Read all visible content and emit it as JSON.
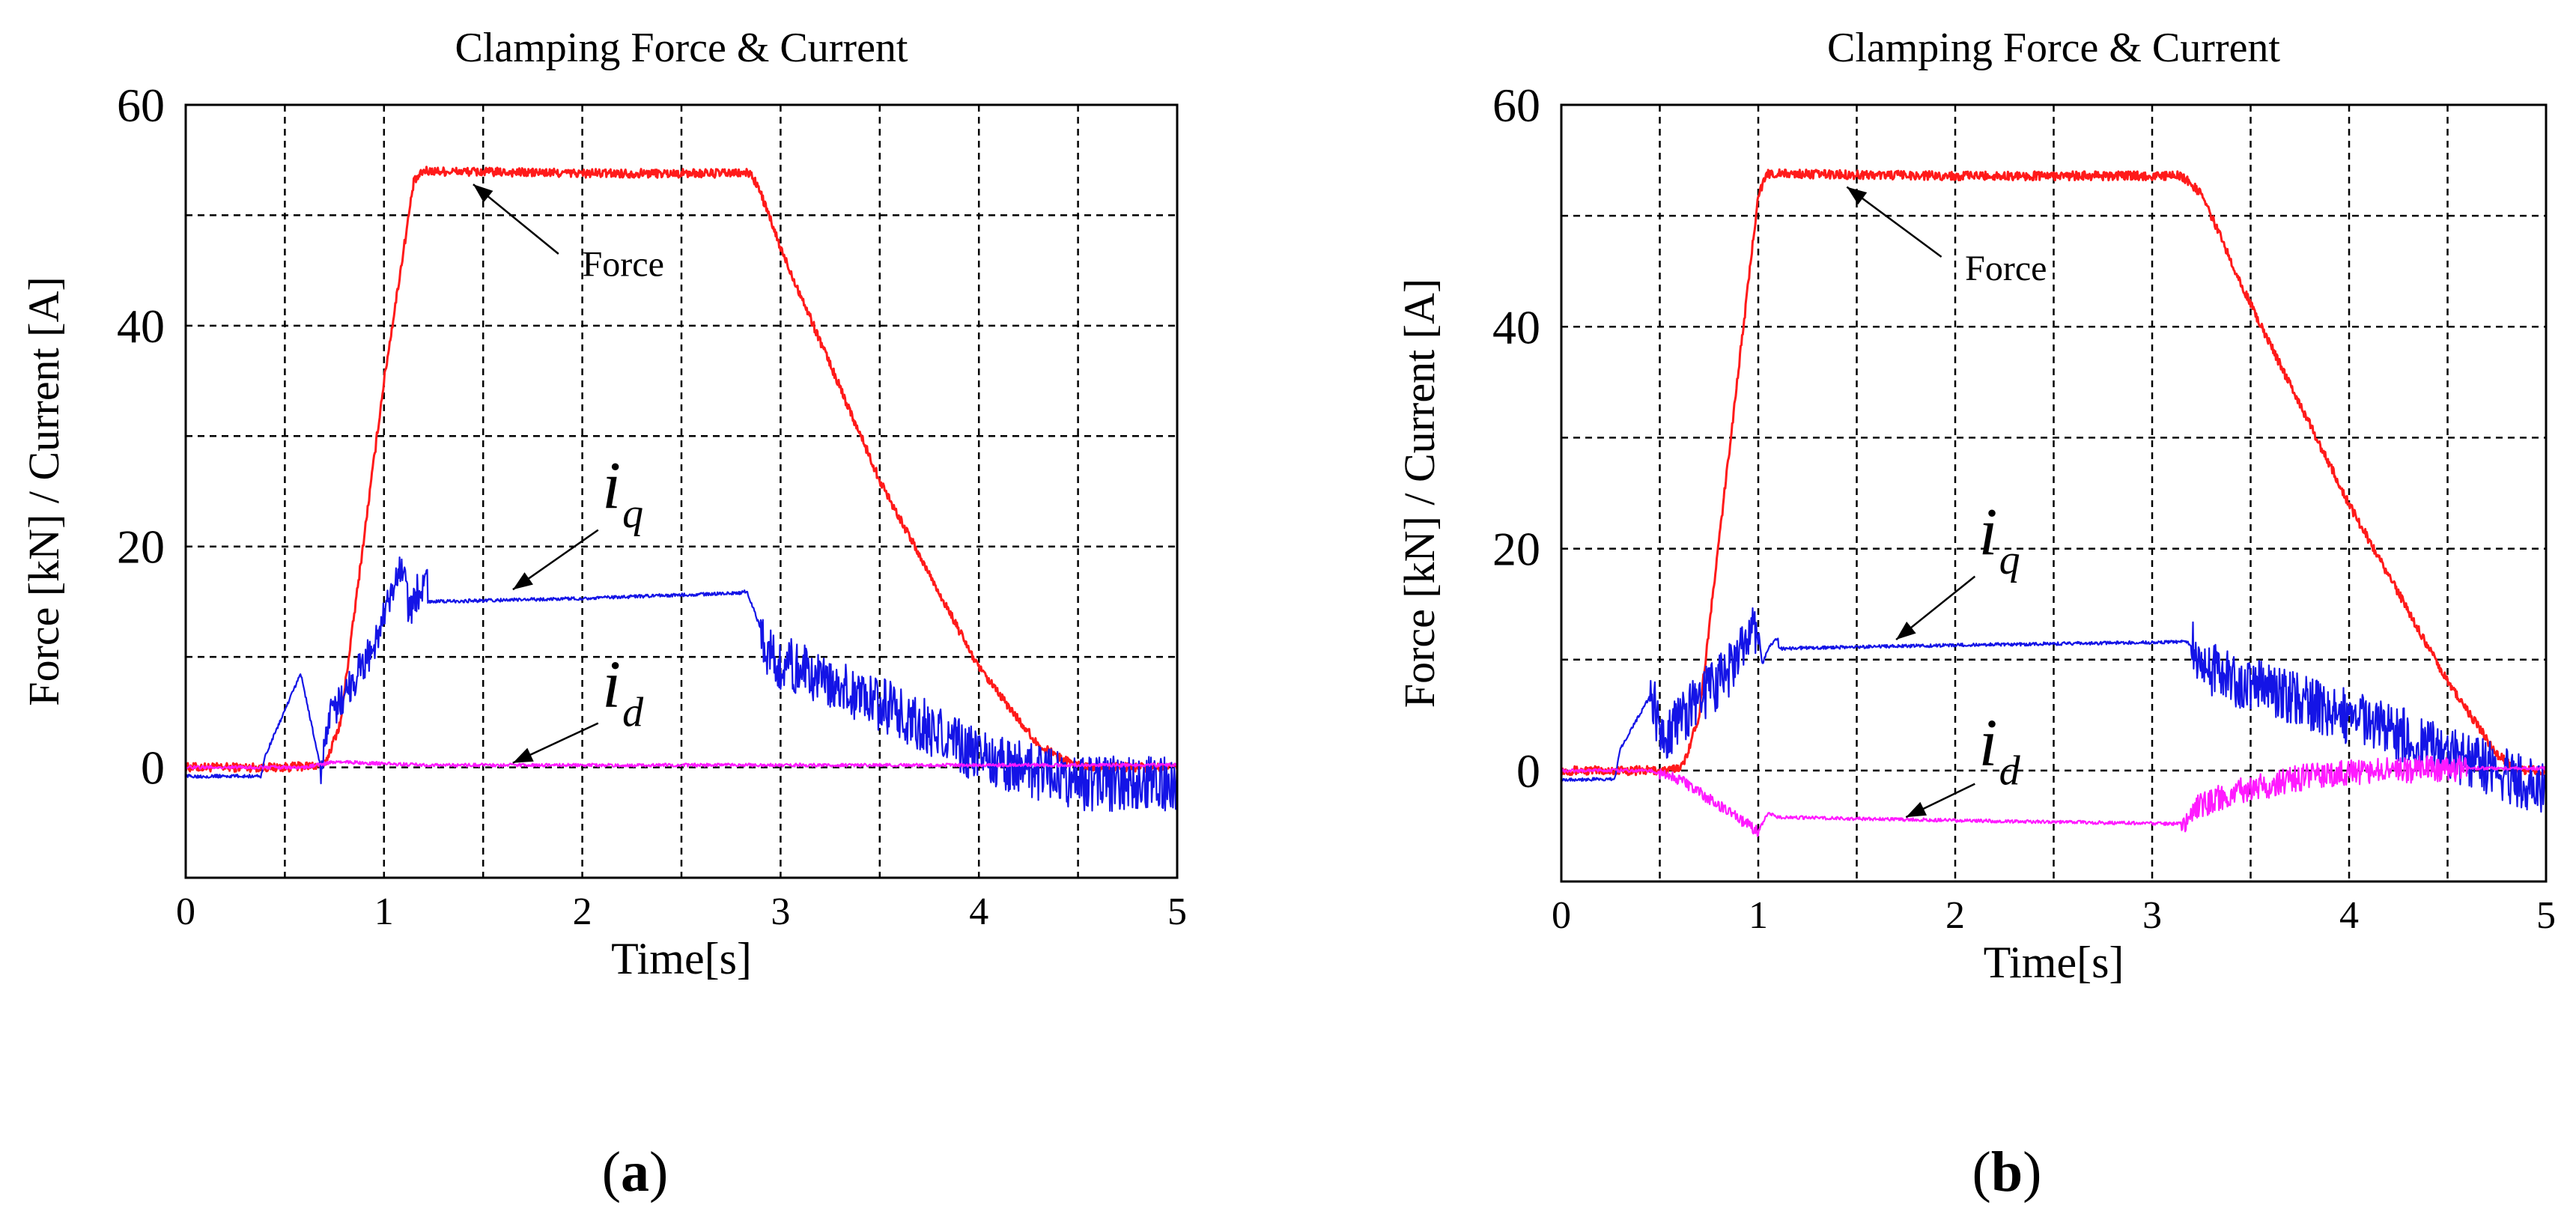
{
  "figure": {
    "panels": [
      {
        "id": "a",
        "open": "(",
        "letter": "a",
        "close": ")"
      },
      {
        "id": "b",
        "open": "(",
        "letter": "b",
        "close": ")"
      }
    ]
  },
  "colors": {
    "force": "#ff1a1a",
    "iq": "#1414e6",
    "id": "#ff1aff",
    "grid": "#000000"
  },
  "chart_data": [
    {
      "type": "line",
      "panel": "a",
      "title": "Clamping Force & Current",
      "xlabel": "Time[s]",
      "ylabel": "Force [kN] / Current [A]",
      "xlim": [
        0,
        5
      ],
      "ylim": [
        -10,
        60
      ],
      "xticks": [
        0,
        0.5,
        1,
        1.5,
        2,
        2.5,
        3,
        3.5,
        4,
        4.5,
        5
      ],
      "xticklabels": [
        "0",
        "",
        "1",
        "",
        "2",
        "",
        "3",
        "",
        "4",
        "",
        "5"
      ],
      "yticks": [
        -10,
        0,
        10,
        20,
        30,
        40,
        50,
        60
      ],
      "yticklabels": [
        "",
        "0",
        "",
        "20",
        "",
        "40",
        "",
        "60"
      ],
      "grid": true,
      "series": [
        {
          "name": "Force",
          "color_key": "force",
          "width": 3,
          "x": [
            0,
            0.5,
            0.7,
            0.78,
            1.0,
            1.15,
            1.2,
            2.0,
            2.85,
            2.9,
            3.0,
            3.5,
            4.0,
            4.3,
            4.45,
            4.6,
            5
          ],
          "y": [
            0,
            0,
            0.2,
            4,
            35,
            53,
            54,
            53.8,
            53.8,
            52,
            47,
            26,
            9,
            2,
            0.5,
            0,
            0
          ],
          "noise": 0.4
        },
        {
          "name": "iq",
          "color_key": "iq",
          "width": 2.2,
          "x": [
            0,
            0.38,
            0.4,
            0.58,
            0.68,
            0.72,
            0.78,
            0.95,
            1.1,
            1.13,
            1.15,
            1.22,
            1.22,
            2.0,
            2.8,
            2.83,
            2.95,
            3.2,
            3.6,
            4.0,
            4.5,
            5
          ],
          "y": [
            -0.8,
            -0.8,
            1,
            8.5,
            0,
            4,
            6,
            11,
            18.5,
            13.5,
            15,
            18,
            15,
            15.3,
            15.8,
            16,
            10,
            8,
            5,
            1,
            -1.5,
            -1.5
          ],
          "noise": [
            [
              0.68,
              1.2,
              1.8
            ],
            [
              2.9,
              5.0,
              2.5
            ]
          ]
        },
        {
          "name": "id",
          "color_key": "id",
          "width": 2.2,
          "x": [
            0,
            0.6,
            0.75,
            1.2,
            5
          ],
          "y": [
            0,
            0,
            0.5,
            0.2,
            0.2
          ],
          "noise": 0.15
        }
      ],
      "annotations": [
        {
          "kind": "label",
          "text": "Force",
          "x": 2.0,
          "y": 44.5,
          "size": 48,
          "from": [
            1.88,
            46.5
          ],
          "to": [
            1.45,
            52.8
          ]
        },
        {
          "kind": "math",
          "base": "i",
          "sub": "q",
          "x": 2.1,
          "y": 23.5,
          "from": [
            2.08,
            21.5
          ],
          "to": [
            1.65,
            16.1
          ]
        },
        {
          "kind": "math",
          "base": "i",
          "sub": "d",
          "x": 2.1,
          "y": 5.5,
          "from": [
            2.08,
            4.0
          ],
          "to": [
            1.65,
            0.4
          ]
        }
      ]
    },
    {
      "type": "line",
      "panel": "b",
      "title": "Clamping Force & Current",
      "xlabel": "Time[s]",
      "ylabel": "Force [kN] / Current [A]",
      "xlim": [
        0,
        5
      ],
      "ylim": [
        -10,
        60
      ],
      "xticks": [
        0,
        0.5,
        1,
        1.5,
        2,
        2.5,
        3,
        3.5,
        4,
        4.5,
        5
      ],
      "xticklabels": [
        "0",
        "",
        "1",
        "",
        "2",
        "",
        "3",
        "",
        "4",
        "",
        "5"
      ],
      "yticks": [
        -10,
        0,
        10,
        20,
        30,
        40,
        50,
        60
      ],
      "yticklabels": [
        "",
        "0",
        "",
        "20",
        "",
        "40",
        "",
        "60"
      ],
      "grid": true,
      "series": [
        {
          "name": "Force",
          "color_key": "force",
          "width": 3,
          "x": [
            0,
            0.55,
            0.62,
            0.7,
            0.95,
            1.0,
            1.05,
            2.0,
            3.15,
            3.25,
            3.5,
            4.0,
            4.5,
            4.75,
            4.85,
            5
          ],
          "y": [
            0,
            0,
            0.5,
            5,
            44,
            52,
            53.8,
            53.6,
            53.6,
            52,
            42,
            24,
            8,
            1.5,
            0,
            0
          ],
          "noise": 0.4
        },
        {
          "name": "iq",
          "color_key": "iq",
          "width": 2.2,
          "x": [
            0,
            0.27,
            0.3,
            0.46,
            0.5,
            0.62,
            0.85,
            1.0,
            1.02,
            1.05,
            1.1,
            1.1,
            2.0,
            3.15,
            3.18,
            3.3,
            3.8,
            4.3,
            4.8,
            5
          ],
          "y": [
            -0.8,
            -0.8,
            2,
            7,
            3,
            5,
            9,
            13,
            9.5,
            11,
            12,
            11,
            11.3,
            11.6,
            11.6,
            9,
            6,
            3,
            -0.5,
            -1.5
          ],
          "noise": [
            [
              0.45,
              1.0,
              2.5
            ],
            [
              3.2,
              5.0,
              2.5
            ]
          ]
        },
        {
          "name": "id",
          "color_key": "id",
          "width": 2.2,
          "x": [
            0,
            0.45,
            0.6,
            1.0,
            1.02,
            1.05,
            1.1,
            2.0,
            3.15,
            3.2,
            3.4,
            3.8,
            4.2,
            4.5,
            5
          ],
          "y": [
            0,
            0,
            -0.8,
            -5.5,
            -4.8,
            -3.8,
            -4.2,
            -4.5,
            -4.8,
            -3.5,
            -2,
            -0.5,
            0,
            0.2,
            0.2
          ],
          "noise": [
            [
              0.5,
              1.0,
              0.5
            ],
            [
              3.15,
              4.6,
              1.2
            ]
          ]
        }
      ],
      "annotations": [
        {
          "kind": "label",
          "text": "Force",
          "x": 2.05,
          "y": 44.2,
          "size": 48,
          "from": [
            1.93,
            46.3
          ],
          "to": [
            1.45,
            52.6
          ]
        },
        {
          "kind": "math",
          "base": "i",
          "sub": "q",
          "x": 2.12,
          "y": 19.5,
          "from": [
            2.1,
            17.5
          ],
          "to": [
            1.7,
            11.8
          ]
        },
        {
          "kind": "math",
          "base": "i",
          "sub": "d",
          "x": 2.12,
          "y": 0.5,
          "from": [
            2.1,
            -1.2
          ],
          "to": [
            1.75,
            -4.2
          ]
        }
      ]
    }
  ]
}
